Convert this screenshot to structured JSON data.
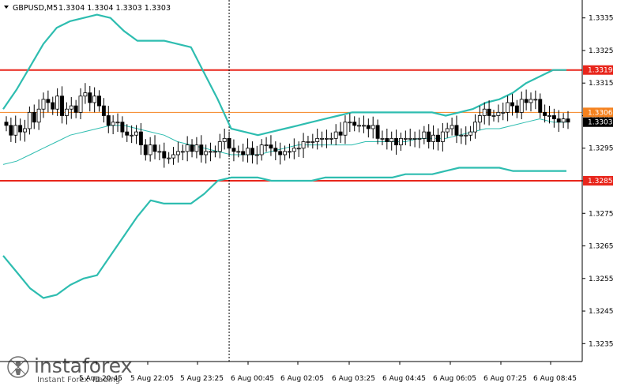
{
  "header": {
    "symbol": "GBPUSD,M5",
    "quote": "1.3304 1.3304 1.3303 1.3303"
  },
  "watermark": {
    "brand": "instaforex",
    "tagline": "Instant Forex Trading"
  },
  "colors": {
    "background": "#ffffff",
    "candle": "#000000",
    "bollinger": "#2ebdb0",
    "level_red": "#e8261c",
    "level_orange": "#f5821f",
    "current_price_label": "#000000",
    "axis_line": "#000000"
  },
  "chart_data": {
    "type": "candlestick",
    "symbol": "GBPUSD",
    "timeframe": "M5",
    "ylim": [
      1.32295,
      1.33405
    ],
    "y_ticks": [
      "1.3235",
      "1.3245",
      "1.3255",
      "1.3265",
      "1.3275",
      "1.3285",
      "1.3295",
      "1.3305",
      "1.3315",
      "1.3325",
      "1.3335"
    ],
    "x_ticks": [
      "5 Aug 20:45",
      "5 Aug 22:05",
      "5 Aug 23:25",
      "6 Aug 00:45",
      "6 Aug 02:05",
      "6 Aug 03:25",
      "6 Aug 04:45",
      "6 Aug 06:05",
      "6 Aug 07:25",
      "6 Aug 08:45"
    ],
    "bars_total": 122,
    "vertical_marker_bar": 48,
    "levels": [
      {
        "price": 1.3319,
        "label": "1.3319",
        "color": "#e8261c"
      },
      {
        "price": 1.3306,
        "label": "1.3306",
        "color": "#f5821f"
      },
      {
        "price": 1.3285,
        "label": "1.3285",
        "color": "#e8261c"
      }
    ],
    "current_price": {
      "price": 1.3303,
      "label": "1.3303"
    },
    "close": [
      1.3302,
      1.3299,
      1.3302,
      1.33,
      1.3301,
      1.3306,
      1.3303,
      1.3307,
      1.331,
      1.3309,
      1.3307,
      1.3311,
      1.3305,
      1.3307,
      1.3308,
      1.3306,
      1.3311,
      1.3312,
      1.3309,
      1.3311,
      1.3308,
      1.3305,
      1.3302,
      1.3303,
      1.3303,
      1.33,
      1.3299,
      1.3299,
      1.33,
      1.3296,
      1.3293,
      1.3296,
      1.3294,
      1.3294,
      1.3292,
      1.3292,
      1.3293,
      1.3294,
      1.3294,
      1.3296,
      1.3294,
      1.3296,
      1.3293,
      1.3294,
      1.3294,
      1.3294,
      1.3297,
      1.3298,
      1.3295,
      1.3294,
      1.3294,
      1.3293,
      1.3295,
      1.3293,
      1.3293,
      1.3296,
      1.3296,
      1.3295,
      1.3294,
      1.3293,
      1.3294,
      1.3294,
      1.3295,
      1.3295,
      1.3297,
      1.3297,
      1.3297,
      1.3298,
      1.3298,
      1.3298,
      1.3298,
      1.33,
      1.3299,
      1.3303,
      1.3303,
      1.3302,
      1.3302,
      1.3302,
      1.3301,
      1.3302,
      1.3298,
      1.3298,
      1.3297,
      1.3298,
      1.3296,
      1.3298,
      1.3298,
      1.3298,
      1.3298,
      1.3298,
      1.33,
      1.3297,
      1.3299,
      1.3297,
      1.33,
      1.3301,
      1.3302,
      1.3299,
      1.3299,
      1.3299,
      1.33,
      1.3303,
      1.3305,
      1.3307,
      1.3305,
      1.3305,
      1.3306,
      1.3306,
      1.3309,
      1.3308,
      1.3306,
      1.331,
      1.3309,
      1.331,
      1.331,
      1.3306,
      1.3305,
      1.3305,
      1.3304,
      1.3303,
      1.3304,
      1.3303
    ],
    "bollinger_upper": [
      1.3307,
      1.3313,
      1.332,
      1.3327,
      1.3332,
      1.3334,
      1.3335,
      1.3336,
      1.3335,
      1.3331,
      1.3328,
      1.3328,
      1.3328,
      1.3327,
      1.3326,
      1.3318,
      1.331,
      1.3301,
      1.33,
      1.3299,
      1.33,
      1.3301,
      1.3302,
      1.3303,
      1.3304,
      1.3305,
      1.3306,
      1.3306,
      1.3306,
      1.3306,
      1.3306,
      1.3306,
      1.3306,
      1.3305,
      1.3306,
      1.3307,
      1.3309,
      1.331,
      1.3312,
      1.3315,
      1.3317,
      1.3319,
      1.3319
    ],
    "bollinger_middle": [
      1.329,
      1.3291,
      1.3293,
      1.3295,
      1.3297,
      1.3299,
      1.33,
      1.3301,
      1.3302,
      1.3302,
      1.3301,
      1.33,
      1.3299,
      1.3297,
      1.3296,
      1.3295,
      1.3294,
      1.3293,
      1.3293,
      1.3293,
      1.3294,
      1.3295,
      1.3296,
      1.3296,
      1.3296,
      1.3296,
      1.3296,
      1.3297,
      1.3297,
      1.3297,
      1.3297,
      1.3298,
      1.3298,
      1.3298,
      1.3299,
      1.33,
      1.3301,
      1.3301,
      1.3302,
      1.3303,
      1.3304,
      1.3303,
      1.3303
    ],
    "bollinger_lower": [
      1.3262,
      1.3257,
      1.3252,
      1.3249,
      1.325,
      1.3253,
      1.3255,
      1.3256,
      1.3262,
      1.3268,
      1.3274,
      1.3279,
      1.3278,
      1.3278,
      1.3278,
      1.3281,
      1.3285,
      1.3286,
      1.3286,
      1.3286,
      1.3285,
      1.3285,
      1.3285,
      1.3285,
      1.3286,
      1.3286,
      1.3286,
      1.3286,
      1.3286,
      1.3286,
      1.3287,
      1.3287,
      1.3287,
      1.3288,
      1.3289,
      1.3289,
      1.3289,
      1.3289,
      1.3288,
      1.3288,
      1.3288,
      1.3288,
      1.3288
    ]
  }
}
